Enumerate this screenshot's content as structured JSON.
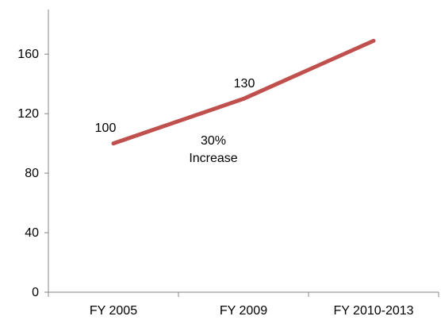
{
  "chart_data": {
    "type": "line",
    "categories": [
      "FY 2005",
      "FY 2009",
      "FY 2010-2013"
    ],
    "series": [
      {
        "values": [
          100,
          130,
          169
        ],
        "color": "#c0504d"
      }
    ],
    "data_labels": [
      "100",
      "130"
    ],
    "annotation": {
      "line1": "30%",
      "line2": "Increase"
    },
    "y_ticks": [
      0,
      40,
      80,
      120,
      160
    ],
    "ylim": [
      0,
      190
    ],
    "grid": false
  }
}
